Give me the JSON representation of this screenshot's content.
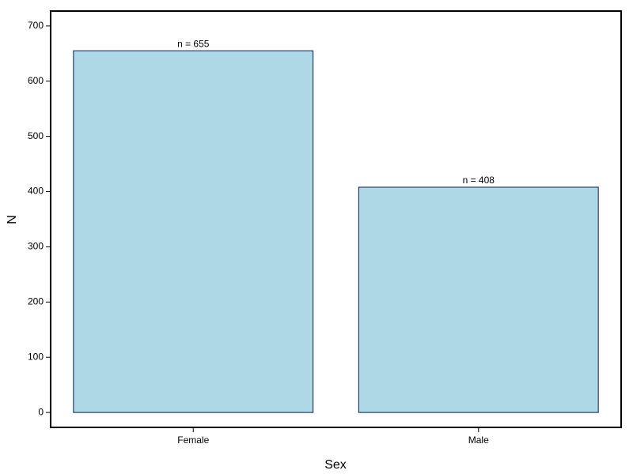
{
  "chart_data": {
    "type": "bar",
    "categories": [
      "Female",
      "Male"
    ],
    "values": [
      655,
      408
    ],
    "value_labels": [
      "n =  655",
      "n =  408"
    ],
    "color": "#add8e6",
    "xlabel": "Sex",
    "ylabel": "N",
    "ylim": [
      -27,
      727
    ],
    "yticks": [
      0,
      100,
      200,
      300,
      400,
      500,
      600,
      700
    ]
  }
}
